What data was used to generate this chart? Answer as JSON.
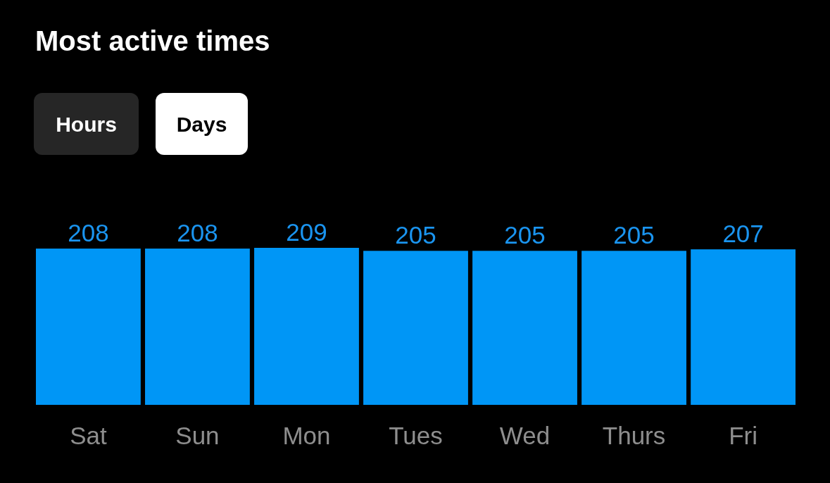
{
  "chart_data": {
    "type": "bar",
    "title": "Most active times",
    "annotations": [
      "Hours",
      "Days"
    ],
    "categories": [
      "Sat",
      "Sun",
      "Mon",
      "Tues",
      "Wed",
      "Thurs",
      "Fri"
    ],
    "values": [
      208,
      208,
      209,
      205,
      205,
      205,
      207
    ],
    "color": "#0096f6",
    "data_labels": true
  }
}
